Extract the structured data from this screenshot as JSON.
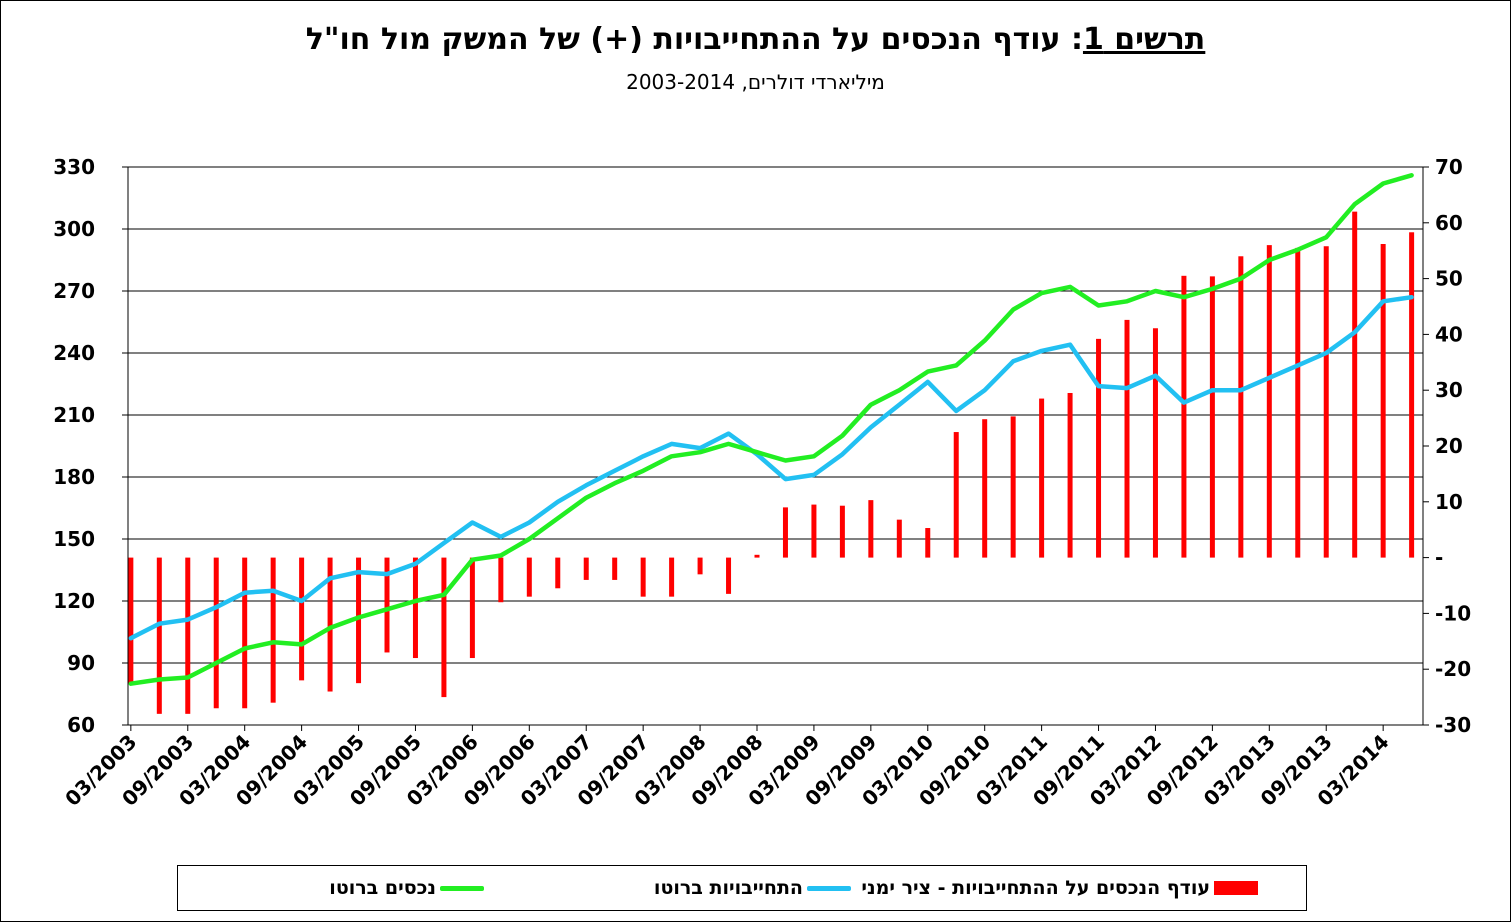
{
  "title": {
    "label": "תרשים 1",
    "text": ": עודף הנכסים על ההתחייבויות (+) של המשק מול חו\"ל"
  },
  "subtitle": "מיליארדי דולרים, 2003-2014",
  "colors": {
    "bars": "#ff0000",
    "liabilities": "#22c0f2",
    "assets": "#22ee22",
    "grid": "#000000"
  },
  "legend": {
    "bars": "עודף הנכסים על ההתחייבויות - ציר ימני",
    "liabilities": "התחייבויות ברוטו",
    "assets": "נכסים ברוטו"
  },
  "chart_data": {
    "type": "bar+line",
    "left_axis": {
      "min": 60,
      "max": 330,
      "step": 30,
      "ticks": [
        "330",
        "300",
        "270",
        "240",
        "210",
        "180",
        "150",
        "120",
        "90",
        "60"
      ]
    },
    "right_axis": {
      "min": -30,
      "max": 70,
      "step": 10,
      "ticks": [
        "70",
        "60",
        "50",
        "40",
        "30",
        "20",
        "10",
        "-",
        "-10",
        "-20",
        "-30"
      ]
    },
    "x_tick_labels": [
      "03/2003",
      "09/2003",
      "03/2004",
      "09/2004",
      "03/2005",
      "09/2005",
      "03/2006",
      "09/2006",
      "03/2007",
      "09/2007",
      "03/2008",
      "09/2008",
      "03/2009",
      "09/2009",
      "03/2010",
      "09/2010",
      "03/2011",
      "09/2011",
      "03/2012",
      "09/2012",
      "03/2013",
      "09/2013",
      "03/2014"
    ],
    "grid": "horizontal",
    "legend_position": "bottom",
    "series": [
      {
        "name": "עודף הנכסים על ההתחייבויות - ציר ימני",
        "type": "bar",
        "axis": "right",
        "values": [
          -22.5,
          -28,
          -28,
          -27,
          -27,
          -26,
          -22,
          -24,
          -22.5,
          -17,
          -18,
          -25,
          -18,
          -8,
          -7,
          -5.5,
          -4,
          -4,
          -7,
          -7,
          -3,
          -6.5,
          0.5,
          9,
          9.5,
          9.3,
          10.3,
          6.8,
          5.3,
          22.5,
          24.8,
          25.3,
          28.5,
          29.5,
          39.2,
          42.6,
          41.1,
          50.5,
          50.4,
          54,
          56,
          55.5,
          55.8,
          62,
          56.2,
          58.3
        ]
      },
      {
        "name": "התחייבויות ברוטו",
        "type": "line",
        "axis": "left",
        "values": [
          102,
          109,
          111,
          117,
          124,
          125,
          120,
          131,
          134,
          133,
          138,
          148,
          158,
          151,
          158,
          168,
          176,
          183,
          190,
          196,
          194,
          201,
          191,
          179,
          181,
          191,
          204,
          215,
          226,
          212,
          222,
          236,
          241,
          244,
          224,
          223,
          229,
          216,
          222,
          222,
          228,
          234,
          240,
          250,
          265,
          267
        ]
      },
      {
        "name": "נכסים ברוטו",
        "type": "line",
        "axis": "left",
        "values": [
          80,
          82,
          83,
          90,
          97,
          100,
          99,
          107,
          112,
          116,
          120,
          123,
          140,
          142,
          150,
          160,
          170,
          177,
          183,
          190,
          192,
          196,
          192,
          188,
          190,
          200,
          215,
          222,
          231,
          234,
          246,
          261,
          269,
          272,
          263,
          265,
          270,
          267,
          271,
          276,
          285,
          290,
          296,
          312,
          322,
          326
        ]
      }
    ]
  }
}
